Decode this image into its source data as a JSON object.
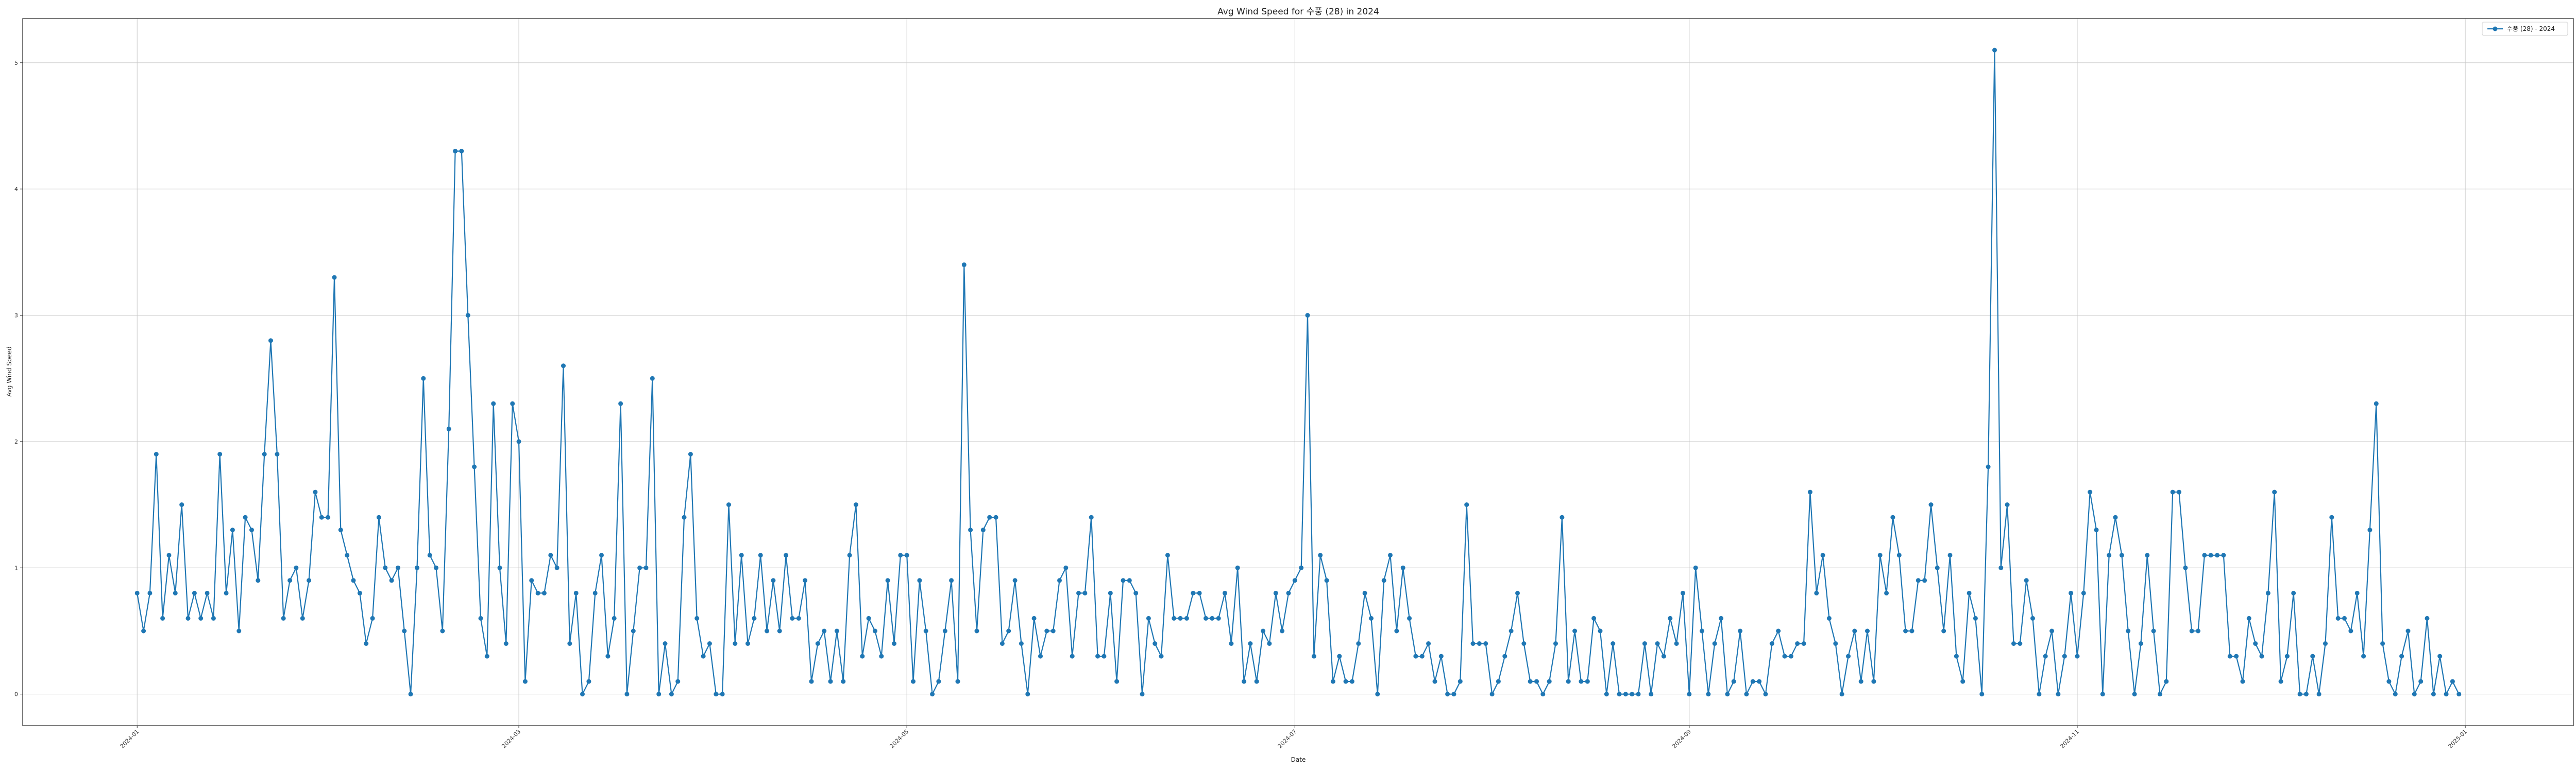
{
  "chart_data": {
    "type": "line",
    "title": "Avg Wind Speed for 수풍 (28) in 2024",
    "xlabel": "Date",
    "ylabel": "Avg Wind Speed",
    "x_start": "2024-01-01",
    "x_end": "2024-12-31",
    "xlim": [
      "2023-12-14",
      "2025-01-18"
    ],
    "ylim": [
      -0.25,
      5.35
    ],
    "x_ticks": [
      "2024-01",
      "2024-03",
      "2024-05",
      "2024-07",
      "2024-09",
      "2024-11",
      "2025-01"
    ],
    "y_ticks": [
      "0",
      "1",
      "2",
      "3",
      "4",
      "5"
    ],
    "grid": true,
    "legend_position": "top-right",
    "series": [
      {
        "name": "수풍 (28) - 2024",
        "color": "#1f77b4",
        "values": [
          0.8,
          0.5,
          0.8,
          1.9,
          0.6,
          1.1,
          0.8,
          1.5,
          0.6,
          0.8,
          0.6,
          0.8,
          0.6,
          1.9,
          0.8,
          1.3,
          0.5,
          1.4,
          1.3,
          0.9,
          1.9,
          2.8,
          1.9,
          0.6,
          0.9,
          1.0,
          0.6,
          0.9,
          1.6,
          1.4,
          1.4,
          3.3,
          1.3,
          1.1,
          0.9,
          0.8,
          0.4,
          0.6,
          1.4,
          1.0,
          0.9,
          1.0,
          0.5,
          0.0,
          1.0,
          2.5,
          1.1,
          1.0,
          0.5,
          2.1,
          4.3,
          4.3,
          3.0,
          1.8,
          0.6,
          0.3,
          2.3,
          1.0,
          0.4,
          2.3,
          2.0,
          0.1,
          0.9,
          0.8,
          0.8,
          1.1,
          1.0,
          2.6,
          0.4,
          0.8,
          0.0,
          0.1,
          0.8,
          1.1,
          0.3,
          0.6,
          2.3,
          0.0,
          0.5,
          1.0,
          1.0,
          2.5,
          0.0,
          0.4,
          0.0,
          0.1,
          1.4,
          1.9,
          0.6,
          0.3,
          0.4,
          0.0,
          0.0,
          1.5,
          0.4,
          1.1,
          0.4,
          0.6,
          1.1,
          0.5,
          0.9,
          0.5,
          1.1,
          0.6,
          0.6,
          0.9,
          0.1,
          0.4,
          0.5,
          0.1,
          0.5,
          0.1,
          1.1,
          1.5,
          0.3,
          0.6,
          0.5,
          0.3,
          0.9,
          0.4,
          1.1,
          1.1,
          0.1,
          0.9,
          0.5,
          0.0,
          0.1,
          0.5,
          0.9,
          0.1,
          3.4,
          1.3,
          0.5,
          1.3,
          1.4,
          1.4,
          0.4,
          0.5,
          0.9,
          0.4,
          0.0,
          0.6,
          0.3,
          0.5,
          0.5,
          0.9,
          1.0,
          0.3,
          0.8,
          0.8,
          1.4,
          0.3,
          0.3,
          0.8,
          0.1,
          0.9,
          0.9,
          0.8,
          0.0,
          0.6,
          0.4,
          0.3,
          1.1,
          0.6,
          0.6,
          0.6,
          0.8,
          0.8,
          0.6,
          0.6,
          0.6,
          0.8,
          0.4,
          1.0,
          0.1,
          0.4,
          0.1,
          0.5,
          0.4,
          0.8,
          0.5,
          0.8,
          0.9,
          1.0,
          3.0,
          0.3,
          1.1,
          0.9,
          0.1,
          0.3,
          0.1,
          0.1,
          0.4,
          0.8,
          0.6,
          0.0,
          0.9,
          1.1,
          0.5,
          1.0,
          0.6,
          0.3,
          0.3,
          0.4,
          0.1,
          0.3,
          0.0,
          0.0,
          0.1,
          1.5,
          0.4,
          0.4,
          0.4,
          0.0,
          0.1,
          0.3,
          0.5,
          0.8,
          0.4,
          0.1,
          0.1,
          0.0,
          0.1,
          0.4,
          1.4,
          0.1,
          0.5,
          0.1,
          0.1,
          0.6,
          0.5,
          0.0,
          0.4,
          0.0,
          0.0,
          0.0,
          0.0,
          0.4,
          0.0,
          0.4,
          0.3,
          0.6,
          0.4,
          0.8,
          0.0,
          1.0,
          0.5,
          0.0,
          0.4,
          0.6,
          0.0,
          0.1,
          0.5,
          0.0,
          0.1,
          0.1,
          0.0,
          0.4,
          0.5,
          0.3,
          0.3,
          0.4,
          0.4,
          1.6,
          0.8,
          1.1,
          0.6,
          0.4,
          0.0,
          0.3,
          0.5,
          0.1,
          0.5,
          0.1,
          1.1,
          0.8,
          1.4,
          1.1,
          0.5,
          0.5,
          0.9,
          0.9,
          1.5,
          1.0,
          0.5,
          1.1,
          0.3,
          0.1,
          0.8,
          0.6,
          0.0,
          1.8,
          5.1,
          1.0,
          1.5,
          0.4,
          0.4,
          0.9,
          0.6,
          0.0,
          0.3,
          0.5,
          0.0,
          0.3,
          0.8,
          0.3,
          0.8,
          1.6,
          1.3,
          0.0,
          1.1,
          1.4,
          1.1,
          0.5,
          0.0,
          0.4,
          1.1,
          0.5,
          0.0,
          0.1,
          1.6,
          1.6,
          1.0,
          0.5,
          0.5,
          1.1,
          1.1,
          1.1,
          1.1,
          0.3,
          0.3,
          0.1,
          0.6,
          0.4,
          0.3,
          0.8,
          1.6,
          0.1,
          0.3,
          0.8,
          0.0,
          0.0,
          0.3,
          0.0,
          0.4,
          1.4,
          0.6,
          0.6,
          0.5,
          0.8,
          0.3,
          1.3,
          2.3,
          0.4,
          0.1,
          0.0,
          0.3,
          0.5,
          0.0,
          0.1,
          0.6,
          0.0,
          0.3,
          0.0,
          0.1,
          0.0
        ]
      }
    ]
  }
}
